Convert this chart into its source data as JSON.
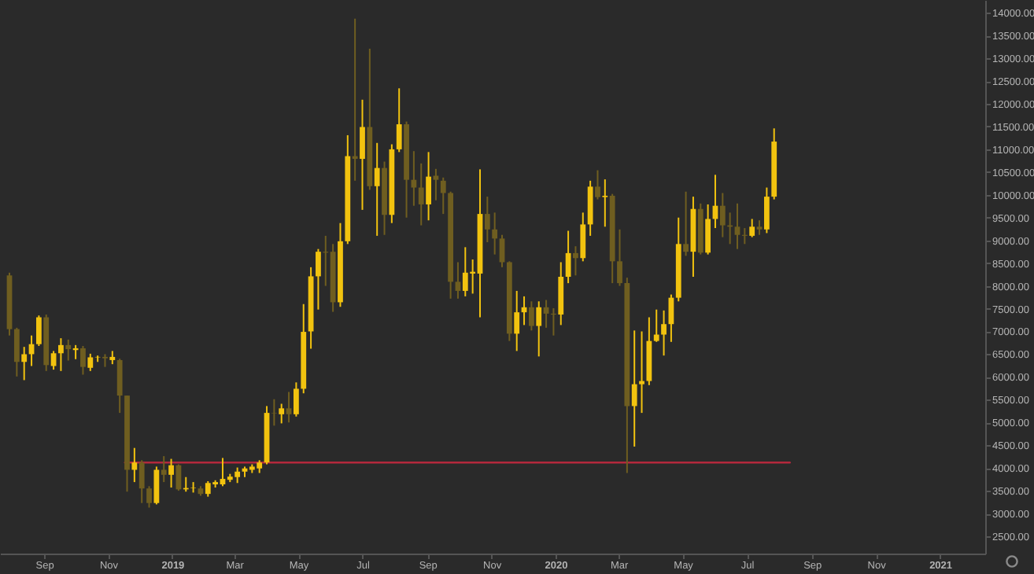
{
  "chart_data": {
    "type": "candlestick",
    "x": [
      "2018-07-30",
      "2018-08-06",
      "2018-08-13",
      "2018-08-20",
      "2018-08-27",
      "2018-09-03",
      "2018-09-10",
      "2018-09-17",
      "2018-09-24",
      "2018-10-01",
      "2018-10-08",
      "2018-10-15",
      "2018-10-22",
      "2018-10-29",
      "2018-11-05",
      "2018-11-12",
      "2018-11-19",
      "2018-11-26",
      "2018-12-03",
      "2018-12-10",
      "2018-12-17",
      "2018-12-24",
      "2018-12-31",
      "2019-01-07",
      "2019-01-14",
      "2019-01-21",
      "2019-01-28",
      "2019-02-04",
      "2019-02-11",
      "2019-02-18",
      "2019-02-25",
      "2019-03-04",
      "2019-03-11",
      "2019-03-18",
      "2019-03-25",
      "2019-04-01",
      "2019-04-08",
      "2019-04-15",
      "2019-04-22",
      "2019-04-29",
      "2019-05-06",
      "2019-05-13",
      "2019-05-20",
      "2019-05-27",
      "2019-06-03",
      "2019-06-10",
      "2019-06-17",
      "2019-06-24",
      "2019-07-01",
      "2019-07-08",
      "2019-07-15",
      "2019-07-22",
      "2019-07-29",
      "2019-08-05",
      "2019-08-12",
      "2019-08-19",
      "2019-08-26",
      "2019-09-02",
      "2019-09-09",
      "2019-09-16",
      "2019-09-23",
      "2019-09-30",
      "2019-10-07",
      "2019-10-14",
      "2019-10-21",
      "2019-10-28",
      "2019-11-04",
      "2019-11-11",
      "2019-11-18",
      "2019-11-25",
      "2019-12-02",
      "2019-12-09",
      "2019-12-16",
      "2019-12-23",
      "2019-12-30",
      "2020-01-06",
      "2020-01-13",
      "2020-01-20",
      "2020-01-27",
      "2020-02-03",
      "2020-02-10",
      "2020-02-17",
      "2020-02-24",
      "2020-03-02",
      "2020-03-09",
      "2020-03-16",
      "2020-03-23",
      "2020-03-30",
      "2020-04-06",
      "2020-04-13",
      "2020-04-20",
      "2020-04-27",
      "2020-05-04",
      "2020-05-11",
      "2020-05-18",
      "2020-05-25",
      "2020-06-01",
      "2020-06-08",
      "2020-06-15",
      "2020-06-22",
      "2020-06-29",
      "2020-07-06",
      "2020-07-13",
      "2020-07-20",
      "2020-07-27"
    ],
    "ohlc": [
      [
        8230,
        8290,
        6910,
        7050
      ],
      [
        7050,
        7080,
        6010,
        6330
      ],
      [
        6330,
        6660,
        5930,
        6500
      ],
      [
        6500,
        6910,
        6240,
        6720
      ],
      [
        6720,
        7350,
        6680,
        7310
      ],
      [
        7310,
        7370,
        6130,
        6260
      ],
      [
        6240,
        6570,
        6160,
        6520
      ],
      [
        6520,
        6850,
        6130,
        6700
      ],
      [
        6700,
        6820,
        6360,
        6610
      ],
      [
        6590,
        6700,
        6390,
        6630
      ],
      [
        6630,
        6680,
        6050,
        6220
      ],
      [
        6200,
        6510,
        6130,
        6430
      ],
      [
        6430,
        6470,
        6330,
        6440
      ],
      [
        6440,
        6500,
        6220,
        6410
      ],
      [
        6370,
        6570,
        6280,
        6440
      ],
      [
        6370,
        6400,
        5210,
        5590
      ],
      [
        5590,
        5590,
        3480,
        3960
      ],
      [
        3960,
        4440,
        3690,
        4120
      ],
      [
        4120,
        4170,
        3230,
        3550
      ],
      [
        3550,
        3600,
        3130,
        3230
      ],
      [
        3230,
        4030,
        3200,
        3960
      ],
      [
        3960,
        4260,
        3690,
        3850
      ],
      [
        3850,
        4200,
        3570,
        4060
      ],
      [
        4060,
        4080,
        3500,
        3530
      ],
      [
        3530,
        3800,
        3480,
        3560
      ],
      [
        3560,
        3690,
        3460,
        3570
      ],
      [
        3550,
        3600,
        3390,
        3430
      ],
      [
        3430,
        3710,
        3370,
        3670
      ],
      [
        3640,
        3730,
        3570,
        3690
      ],
      [
        3640,
        4220,
        3600,
        3760
      ],
      [
        3740,
        3870,
        3690,
        3810
      ],
      [
        3800,
        4010,
        3670,
        3920
      ],
      [
        3920,
        4030,
        3800,
        3990
      ],
      [
        3960,
        4080,
        3890,
        4030
      ],
      [
        3990,
        4170,
        3890,
        4120
      ],
      [
        4120,
        5360,
        4080,
        5210
      ],
      [
        5210,
        5510,
        4930,
        5200
      ],
      [
        5180,
        5410,
        4980,
        5310
      ],
      [
        5310,
        5670,
        5000,
        5180
      ],
      [
        5180,
        5880,
        5130,
        5740
      ],
      [
        5740,
        7600,
        5640,
        6990
      ],
      [
        7000,
        8410,
        6620,
        8210
      ],
      [
        8210,
        8810,
        7480,
        8750
      ],
      [
        8750,
        9100,
        8000,
        8730
      ],
      [
        8750,
        8920,
        7430,
        7640
      ],
      [
        7640,
        9380,
        7540,
        8980
      ],
      [
        8980,
        11310,
        8920,
        10850
      ],
      [
        10850,
        13870,
        10310,
        10790
      ],
      [
        10790,
        12090,
        9670,
        11490
      ],
      [
        11490,
        13210,
        10110,
        10190
      ],
      [
        10190,
        11140,
        9100,
        10590
      ],
      [
        10590,
        10730,
        9120,
        9560
      ],
      [
        9560,
        11110,
        9380,
        11000
      ],
      [
        11000,
        12340,
        10940,
        11550
      ],
      [
        11550,
        11610,
        9500,
        10330
      ],
      [
        10330,
        10960,
        9760,
        10160
      ],
      [
        10160,
        10690,
        9330,
        9790
      ],
      [
        9790,
        10940,
        9440,
        10400
      ],
      [
        10420,
        10570,
        9880,
        10330
      ],
      [
        10310,
        10380,
        9580,
        10040
      ],
      [
        10040,
        10070,
        7720,
        8090
      ],
      [
        8090,
        8520,
        7720,
        7890
      ],
      [
        7890,
        8850,
        7770,
        8290
      ],
      [
        8270,
        8580,
        7830,
        8310
      ],
      [
        8270,
        10560,
        7310,
        9580
      ],
      [
        9580,
        9960,
        8960,
        9240
      ],
      [
        9240,
        9610,
        8690,
        9040
      ],
      [
        9040,
        9120,
        8410,
        8520
      ],
      [
        8520,
        8540,
        6790,
        6950
      ],
      [
        6950,
        7890,
        6570,
        7420
      ],
      [
        7420,
        7770,
        7140,
        7530
      ],
      [
        7530,
        7660,
        7020,
        7120
      ],
      [
        7120,
        7660,
        6450,
        7530
      ],
      [
        7530,
        7690,
        7080,
        7390
      ],
      [
        7390,
        7510,
        6910,
        7370
      ],
      [
        7370,
        8520,
        7140,
        8200
      ],
      [
        8200,
        9210,
        8060,
        8720
      ],
      [
        8720,
        8870,
        8230,
        8610
      ],
      [
        8610,
        9610,
        8540,
        9350
      ],
      [
        9350,
        10310,
        9100,
        10180
      ],
      [
        10180,
        10540,
        9900,
        9950
      ],
      [
        9950,
        10340,
        9300,
        9980
      ],
      [
        9980,
        10020,
        8060,
        8540
      ],
      [
        8540,
        9240,
        8000,
        8060
      ],
      [
        8060,
        8180,
        3890,
        5360
      ],
      [
        5360,
        7020,
        4470,
        5840
      ],
      [
        5840,
        7000,
        5210,
        5910
      ],
      [
        5910,
        7310,
        5820,
        6790
      ],
      [
        6790,
        7480,
        6770,
        6930
      ],
      [
        6930,
        7460,
        6470,
        7160
      ],
      [
        7160,
        7810,
        6770,
        7740
      ],
      [
        7740,
        9500,
        7660,
        8920
      ],
      [
        8920,
        10070,
        8660,
        8750
      ],
      [
        8750,
        9960,
        8200,
        9690
      ],
      [
        9690,
        9810,
        8690,
        8730
      ],
      [
        8730,
        9790,
        8690,
        9470
      ],
      [
        9470,
        10440,
        9270,
        9760
      ],
      [
        9760,
        10040,
        9070,
        9330
      ],
      [
        9330,
        9610,
        8920,
        9300
      ],
      [
        9300,
        9810,
        8810,
        9120
      ],
      [
        9120,
        9270,
        8920,
        9100
      ],
      [
        9100,
        9470,
        9070,
        9300
      ],
      [
        9300,
        9440,
        9120,
        9240
      ],
      [
        9240,
        10160,
        9160,
        9960
      ],
      [
        9960,
        11460,
        9900,
        11170
      ]
    ],
    "colors": [
      "#6f5e20",
      "#6f5e20",
      "#f2c30f",
      "#f2c30f",
      "#f2c30f",
      "#6f5e20",
      "#f2c30f",
      "#f2c30f",
      "#6f5e20",
      "#f2c30f",
      "#6f5e20",
      "#f2c30f",
      "#f2c30f",
      "#6f5e20",
      "#f2c30f",
      "#6f5e20",
      "#6f5e20",
      "#f2c30f",
      "#6f5e20",
      "#6f5e20",
      "#f2c30f",
      "#6f5e20",
      "#f2c30f",
      "#6f5e20",
      "#f2c30f",
      "#f2c30f",
      "#6f5e20",
      "#f2c30f",
      "#f2c30f",
      "#f2c30f",
      "#f2c30f",
      "#f2c30f",
      "#f2c30f",
      "#f2c30f",
      "#f2c30f",
      "#f2c30f",
      "#6f5e20",
      "#f2c30f",
      "#6f5e20",
      "#f2c30f",
      "#f2c30f",
      "#f2c30f",
      "#f2c30f",
      "#6f5e20",
      "#6f5e20",
      "#f2c30f",
      "#f2c30f",
      "#6f5e20",
      "#f2c30f",
      "#6f5e20",
      "#f2c30f",
      "#6f5e20",
      "#f2c30f",
      "#f2c30f",
      "#6f5e20",
      "#6f5e20",
      "#6f5e20",
      "#f2c30f",
      "#6f5e20",
      "#6f5e20",
      "#6f5e20",
      "#6f5e20",
      "#f2c30f",
      "#f2c30f",
      "#f2c30f",
      "#6f5e20",
      "#6f5e20",
      "#6f5e20",
      "#6f5e20",
      "#f2c30f",
      "#f2c30f",
      "#6f5e20",
      "#f2c30f",
      "#6f5e20",
      "#6f5e20",
      "#f2c30f",
      "#f2c30f",
      "#6f5e20",
      "#f2c30f",
      "#f2c30f",
      "#6f5e20",
      "#f2c30f",
      "#6f5e20",
      "#6f5e20",
      "#6f5e20",
      "#f2c30f",
      "#f2c30f",
      "#f2c30f",
      "#f2c30f",
      "#f2c30f",
      "#f2c30f",
      "#f2c30f",
      "#6f5e20",
      "#f2c30f",
      "#6f5e20",
      "#f2c30f",
      "#f2c30f",
      "#6f5e20",
      "#6f5e20",
      "#6f5e20",
      "#6f5e20",
      "#f2c30f",
      "#6f5e20",
      "#f2c30f",
      "#f2c30f"
    ],
    "series": [
      {
        "type": "line",
        "color": "#b3283c",
        "x": [
          "2018-11-17",
          "2020-08-11"
        ],
        "values": [
          4120,
          4120
        ]
      }
    ],
    "xlim": [
      "2018-07-21",
      "2021-02-13"
    ],
    "xticks": [
      {
        "value": "2018-09-01",
        "label": "Sep"
      },
      {
        "value": "2018-11-01",
        "label": "Nov"
      },
      {
        "value": "2019-01-01",
        "label": "2019"
      },
      {
        "value": "2019-03-01",
        "label": "Mar"
      },
      {
        "value": "2019-05-01",
        "label": "May"
      },
      {
        "value": "2019-07-01",
        "label": "Jul"
      },
      {
        "value": "2019-09-01",
        "label": "Sep"
      },
      {
        "value": "2019-11-01",
        "label": "Nov"
      },
      {
        "value": "2020-01-01",
        "label": "2020"
      },
      {
        "value": "2020-03-01",
        "label": "Mar"
      },
      {
        "value": "2020-05-01",
        "label": "May"
      },
      {
        "value": "2020-07-01",
        "label": "Jul"
      },
      {
        "value": "2020-09-01",
        "label": "Sep"
      },
      {
        "value": "2020-11-01",
        "label": "Nov"
      },
      {
        "value": "2021-01-01",
        "label": "2021"
      }
    ],
    "ylim": [
      2120,
      14280
    ],
    "yticks": [
      {
        "value": 2500,
        "label": "2500.00"
      },
      {
        "value": 3000,
        "label": "3000.00"
      },
      {
        "value": 3500,
        "label": "3500.00"
      },
      {
        "value": 4000,
        "label": "4000.00"
      },
      {
        "value": 4500,
        "label": "4500.00"
      },
      {
        "value": 5000,
        "label": "5000.00"
      },
      {
        "value": 5500,
        "label": "5500.00"
      },
      {
        "value": 6000,
        "label": "6000.00"
      },
      {
        "value": 6500,
        "label": "6500.00"
      },
      {
        "value": 7000,
        "label": "7000.00"
      },
      {
        "value": 7500,
        "label": "7500.00"
      },
      {
        "value": 8000,
        "label": "8000.00"
      },
      {
        "value": 8500,
        "label": "8500.00"
      },
      {
        "value": 9000,
        "label": "9000.00"
      },
      {
        "value": 9500,
        "label": "9500.00"
      },
      {
        "value": 10000,
        "label": "10000.00"
      },
      {
        "value": 10500,
        "label": "10500.00"
      },
      {
        "value": 11000,
        "label": "11000.00"
      },
      {
        "value": 11500,
        "label": "11500.00"
      },
      {
        "value": 12000,
        "label": "12000.00"
      },
      {
        "value": 12500,
        "label": "12500.00"
      },
      {
        "value": 13000,
        "label": "13000.00"
      },
      {
        "value": 13500,
        "label": "13500.00"
      },
      {
        "value": 14000,
        "label": "14000.00"
      }
    ]
  }
}
